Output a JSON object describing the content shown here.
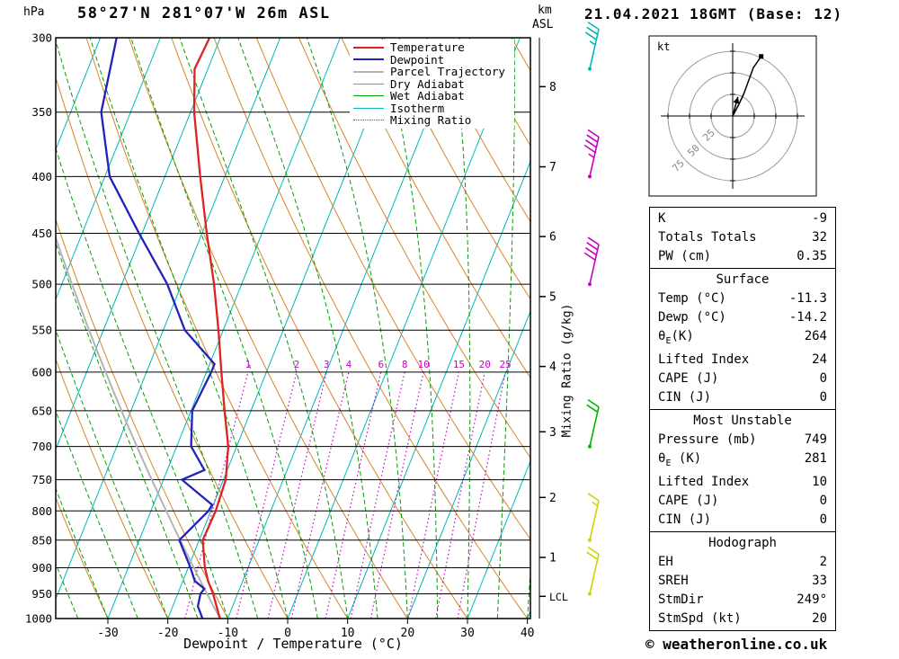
{
  "header": {
    "station_title": "58°27'N 281°07'W 26m ASL",
    "run_title": "21.04.2021 18GMT (Base: 12)"
  },
  "axes": {
    "pressure_unit": "hPa",
    "km_line1": "km",
    "km_line2": "ASL",
    "x_label": "Dewpoint / Temperature (°C)",
    "mixing_ratio_axis_label": "Mixing Ratio (g/kg)"
  },
  "legend": {
    "items": [
      {
        "label": "Temperature",
        "color": "#dd2222",
        "dash": "solid",
        "width": 2.5
      },
      {
        "label": "Dewpoint",
        "color": "#2222bb",
        "dash": "solid",
        "width": 2.5
      },
      {
        "label": "Parcel Trajectory",
        "color": "#b4b4b4",
        "dash": "solid",
        "width": 2.5
      },
      {
        "label": "Dry Adiabat",
        "color": "#d88428",
        "dash": "solid",
        "width": 1.5
      },
      {
        "label": "Wet Adiabat",
        "color": "#00a000",
        "dash": "solid",
        "width": 1.5
      },
      {
        "label": "Isotherm",
        "color": "#00b8b8",
        "dash": "solid",
        "width": 1.5
      },
      {
        "label": "Mixing Ratio",
        "color": "#c800c8",
        "dash": "dotted",
        "width": 1.5
      }
    ]
  },
  "chart_data": {
    "type": "skewt-log-p",
    "plim": [
      300,
      1000
    ],
    "xlim": [
      -38.7,
      40.5
    ],
    "skew": 0.4,
    "isotherm_step": 10,
    "dry_adiabat_theta_range": [
      -40,
      160,
      10
    ],
    "wet_adiabat_thetaw_range": [
      -40,
      40,
      5
    ],
    "pressure_ticks": [
      300,
      350,
      400,
      450,
      500,
      550,
      600,
      650,
      700,
      750,
      800,
      850,
      900,
      950,
      1000
    ],
    "temp_ticks": [
      -30,
      -20,
      -10,
      0,
      10,
      20,
      30,
      40
    ],
    "km_ticks": [
      {
        "label": "8",
        "p": 332
      },
      {
        "label": "7",
        "p": 392
      },
      {
        "label": "6",
        "p": 453
      },
      {
        "label": "5",
        "p": 513
      },
      {
        "label": "4",
        "p": 593
      },
      {
        "label": "3",
        "p": 679
      },
      {
        "label": "2",
        "p": 778
      },
      {
        "label": "1",
        "p": 881
      },
      {
        "label": "LCL",
        "p": 955
      }
    ],
    "mixing_ratio_lines": [
      1,
      2,
      3,
      4,
      6,
      8,
      10,
      15,
      20,
      25
    ],
    "temperature_profile": [
      [
        1000,
        -11.3
      ],
      [
        950,
        -14.1
      ],
      [
        925,
        -15.8
      ],
      [
        900,
        -17.2
      ],
      [
        850,
        -19.4
      ],
      [
        800,
        -19.2
      ],
      [
        750,
        -19.6
      ],
      [
        700,
        -21.4
      ],
      [
        650,
        -24.4
      ],
      [
        600,
        -27.5
      ],
      [
        550,
        -30.8
      ],
      [
        500,
        -34.6
      ],
      [
        450,
        -39.2
      ],
      [
        400,
        -44.1
      ],
      [
        350,
        -49.4
      ],
      [
        320,
        -52.2
      ],
      [
        300,
        -51.8
      ]
    ],
    "dewpoint_profile": [
      [
        1000,
        -14.2
      ],
      [
        975,
        -15.8
      ],
      [
        950,
        -16.2
      ],
      [
        940,
        -15.9
      ],
      [
        925,
        -18.0
      ],
      [
        900,
        -19.6
      ],
      [
        850,
        -23.3
      ],
      [
        800,
        -20.4
      ],
      [
        790,
        -20.2
      ],
      [
        750,
        -26.9
      ],
      [
        735,
        -23.8
      ],
      [
        700,
        -27.6
      ],
      [
        650,
        -29.8
      ],
      [
        600,
        -29.2
      ],
      [
        590,
        -29.2
      ],
      [
        550,
        -36.4
      ],
      [
        500,
        -42.4
      ],
      [
        450,
        -50.5
      ],
      [
        400,
        -59.2
      ],
      [
        350,
        -64.9
      ],
      [
        300,
        -67.3
      ]
    ],
    "parcel_theta_c": -11.3,
    "surface_values": {
      "temp_c": -11.3,
      "dewp_c": -14.2,
      "lcl_p": 955
    },
    "wind_barbs": [
      {
        "p": 320,
        "color": "#00b8b8",
        "speed_kt": 35
      },
      {
        "p": 400,
        "color": "#c800c8",
        "speed_kt": 45
      },
      {
        "p": 500,
        "color": "#c800c8",
        "speed_kt": 40
      },
      {
        "p": 700,
        "color": "#00b400",
        "speed_kt": 20
      },
      {
        "p": 850,
        "color": "#d2d200",
        "speed_kt": 15
      },
      {
        "p": 950,
        "color": "#d2d200",
        "speed_kt": 20
      }
    ],
    "hodograph": {
      "unit_label": "kt",
      "rings_kt": [
        25,
        50,
        75
      ],
      "trace_uv_kt": [
        [
          0,
          0
        ],
        [
          7,
          13
        ],
        [
          13,
          26
        ],
        [
          24,
          56
        ],
        [
          33,
          69
        ]
      ],
      "storm_arrow_uv_kt": [
        6,
        22
      ]
    },
    "colors": {
      "temperature": "#dd2222",
      "dewpoint": "#2222bb",
      "parcel": "#b4b4b4",
      "dry_adiabat": "#d88428",
      "wet_adiabat": "#00a000",
      "isotherm": "#00b8b8",
      "mixing_ratio": "#c800c8",
      "grid": "#000000"
    }
  },
  "tables": {
    "indices": {
      "rows": [
        [
          "K",
          "-9"
        ],
        [
          "Totals Totals",
          "32"
        ],
        [
          "PW (cm)",
          "0.35"
        ]
      ]
    },
    "surface": {
      "title": "Surface",
      "rows": [
        [
          "Temp (°C)",
          "-11.3"
        ],
        [
          "Dewp (°C)",
          "-14.2"
        ],
        [
          "θ~E~(K)",
          "264"
        ],
        [
          "Lifted Index",
          "24"
        ],
        [
          "CAPE (J)",
          "0"
        ],
        [
          "CIN (J)",
          "0"
        ]
      ]
    },
    "most_unstable": {
      "title": "Most Unstable",
      "rows": [
        [
          "Pressure (mb)",
          "749"
        ],
        [
          "θ~E~ (K)",
          "281"
        ],
        [
          "Lifted Index",
          "10"
        ],
        [
          "CAPE (J)",
          "0"
        ],
        [
          "CIN (J)",
          "0"
        ]
      ]
    },
    "hodograph": {
      "title": "Hodograph",
      "rows": [
        [
          "EH",
          "2"
        ],
        [
          "SREH",
          "33"
        ],
        [
          "StmDir",
          "249°"
        ],
        [
          "StmSpd (kt)",
          "20"
        ]
      ]
    }
  },
  "footer": {
    "copyright": "© weatheronline.co.uk"
  }
}
